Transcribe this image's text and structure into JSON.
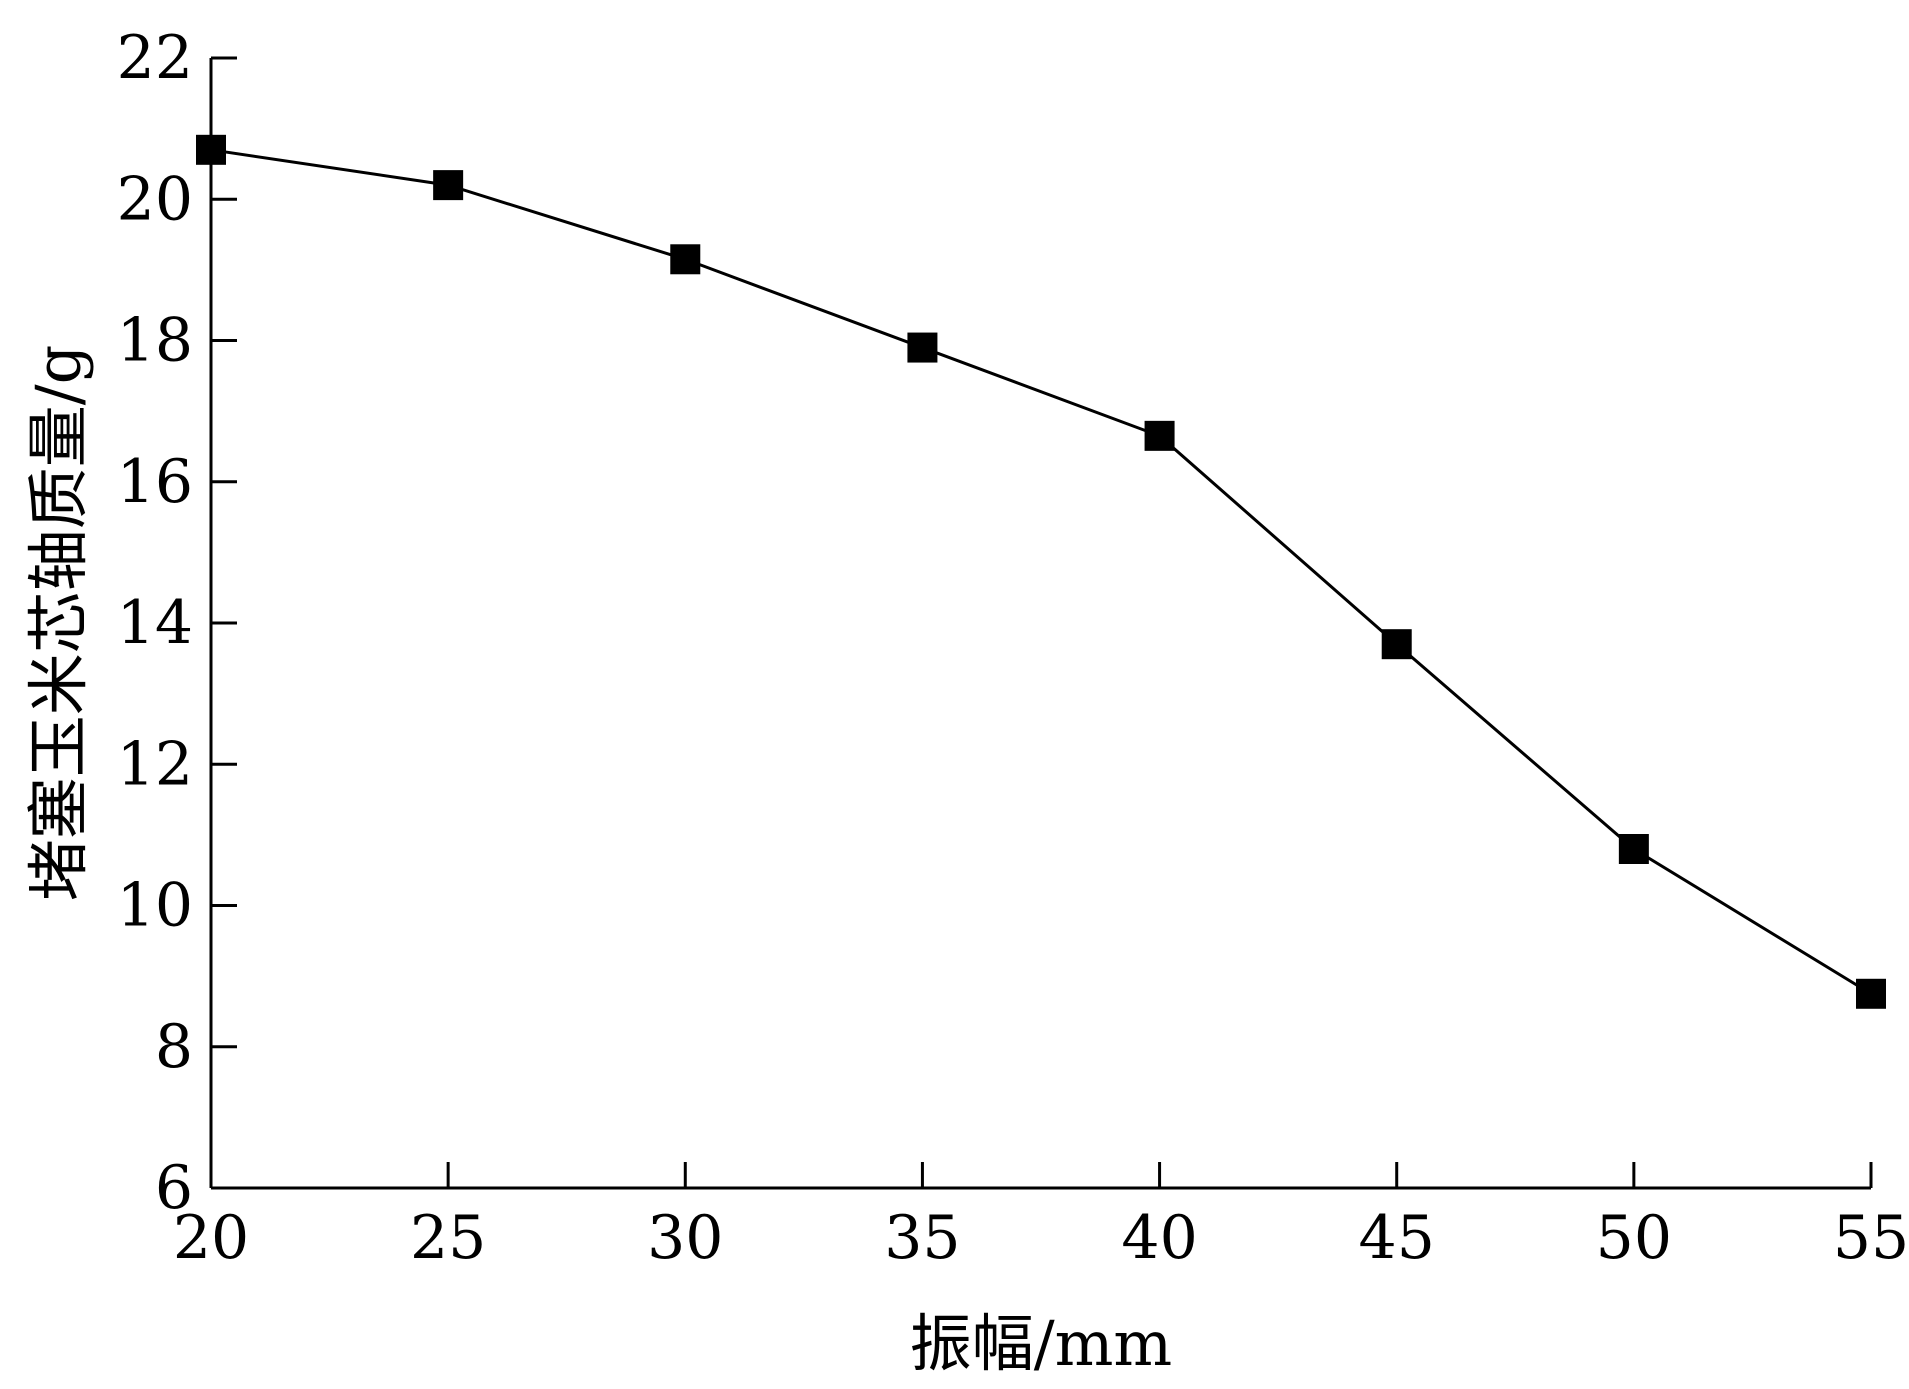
{
  "chart_data": {
    "type": "line",
    "title": "",
    "xlabel": "振幅/mm",
    "ylabel": "堵塞玉米芯轴质量/g",
    "x": [
      20,
      25,
      30,
      35,
      40,
      45,
      50,
      55
    ],
    "series": [
      {
        "values": [
          20.7,
          20.2,
          19.15,
          17.9,
          16.65,
          13.7,
          10.8,
          8.75
        ],
        "marker": "square",
        "color": "#000000"
      }
    ],
    "xlim": [
      20,
      55
    ],
    "ylim": [
      6,
      22
    ],
    "xticks": [
      20,
      25,
      30,
      35,
      40,
      45,
      50,
      55
    ],
    "yticks": [
      6,
      8,
      10,
      12,
      14,
      16,
      18,
      20,
      22
    ],
    "grid": false,
    "legend": "none"
  }
}
